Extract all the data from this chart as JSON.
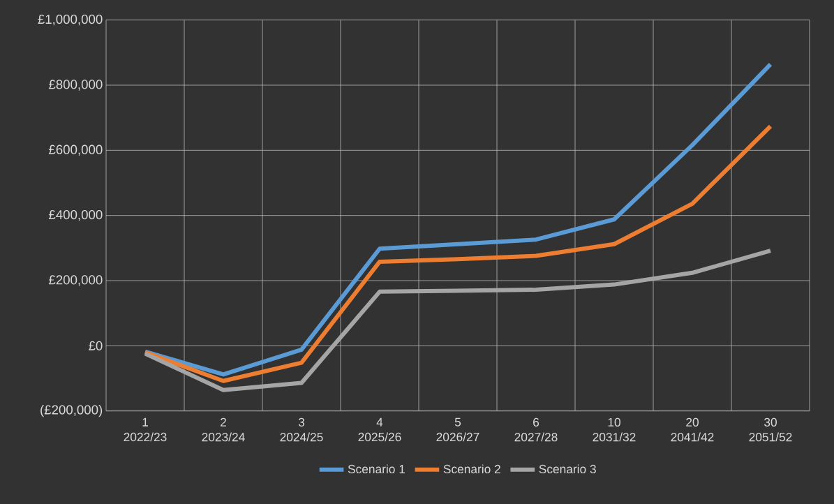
{
  "chart_data": {
    "type": "line",
    "categories": [
      "1 2022/23",
      "2 2023/24",
      "3 2024/25",
      "4 2025/26",
      "5 2026/27",
      "6 2027/28",
      "10 2031/32",
      "20 2041/42",
      "30 2051/52"
    ],
    "series": [
      {
        "name": "Scenario 1",
        "color": "#5b9bd5",
        "values": [
          -18000,
          -88000,
          -12000,
          298000,
          312000,
          326000,
          388000,
          616000,
          864000
        ]
      },
      {
        "name": "Scenario 2",
        "color": "#ed7d31",
        "values": [
          -20000,
          -108000,
          -52000,
          258000,
          266000,
          276000,
          312000,
          436000,
          674000
        ]
      },
      {
        "name": "Scenario 3",
        "color": "#a5a5a5",
        "values": [
          -24000,
          -136000,
          -114000,
          166000,
          169000,
          172000,
          188000,
          224000,
          292000
        ]
      }
    ],
    "ylim": [
      -200000,
      1000000
    ],
    "yticks": [
      {
        "value": -200000,
        "label": "(£200,000)"
      },
      {
        "value": 0,
        "label": "£0"
      },
      {
        "value": 200000,
        "label": "£200,000"
      },
      {
        "value": 400000,
        "label": "£400,000"
      },
      {
        "value": 600000,
        "label": "£600,000"
      },
      {
        "value": 800000,
        "label": "£800,000"
      },
      {
        "value": 1000000,
        "label": "£1,000,000"
      }
    ],
    "grid": true,
    "legend": "bottom",
    "marker": "none",
    "line_style": "solid"
  }
}
